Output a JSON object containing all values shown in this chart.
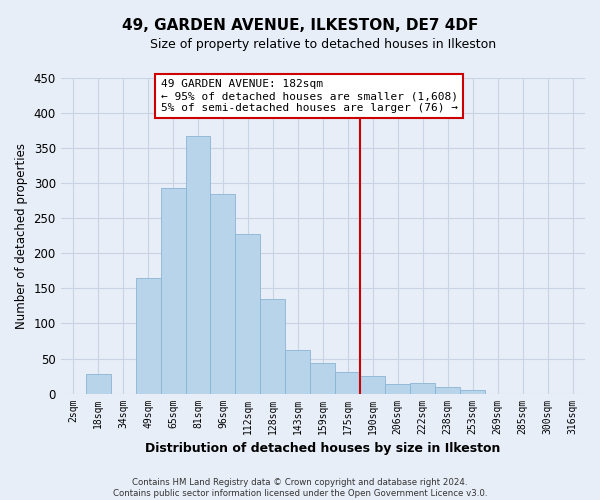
{
  "title": "49, GARDEN AVENUE, ILKESTON, DE7 4DF",
  "subtitle": "Size of property relative to detached houses in Ilkeston",
  "xlabel": "Distribution of detached houses by size in Ilkeston",
  "ylabel": "Number of detached properties",
  "bar_labels": [
    "2sqm",
    "18sqm",
    "34sqm",
    "49sqm",
    "65sqm",
    "81sqm",
    "96sqm",
    "112sqm",
    "128sqm",
    "143sqm",
    "159sqm",
    "175sqm",
    "190sqm",
    "206sqm",
    "222sqm",
    "238sqm",
    "253sqm",
    "269sqm",
    "285sqm",
    "300sqm",
    "316sqm"
  ],
  "bar_heights": [
    0,
    28,
    0,
    165,
    293,
    367,
    285,
    228,
    135,
    62,
    43,
    31,
    25,
    14,
    15,
    10,
    5,
    0,
    0,
    0,
    0
  ],
  "bar_color": "#b8d4ea",
  "bar_edge_color": "#8ab4d4",
  "vline_color": "#cc0000",
  "annotation_title": "49 GARDEN AVENUE: 182sqm",
  "annotation_line1": "← 95% of detached houses are smaller (1,608)",
  "annotation_line2": "5% of semi-detached houses are larger (76) →",
  "ylim": [
    0,
    450
  ],
  "yticks": [
    0,
    50,
    100,
    150,
    200,
    250,
    300,
    350,
    400,
    450
  ],
  "footer_line1": "Contains HM Land Registry data © Crown copyright and database right 2024.",
  "footer_line2": "Contains public sector information licensed under the Open Government Licence v3.0.",
  "bg_color": "#e8eef8",
  "plot_bg_color": "#e8eef8",
  "grid_color": "#c8d4e4"
}
